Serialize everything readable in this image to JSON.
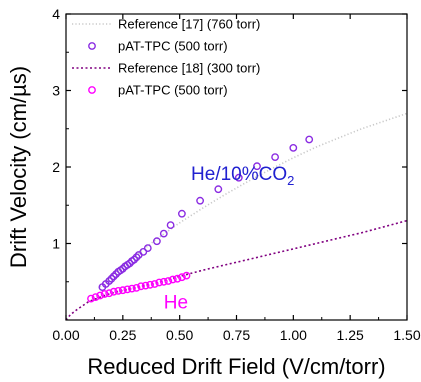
{
  "chart_data": {
    "type": "scatter",
    "xlabel": "Reduced Drift Field (V/cm/torr)",
    "ylabel": "Drift Velocity (cm/µs)",
    "xlim": [
      0,
      1.5
    ],
    "ylim": [
      0,
      4
    ],
    "x_ticks": [
      "0.00",
      "0.25",
      "0.50",
      "0.75",
      "1.00",
      "1.25",
      "1.50"
    ],
    "y_ticks": [
      "1",
      "2",
      "3",
      "4"
    ],
    "grid": false,
    "legend_position": "top-left",
    "series": [
      {
        "name": "Reference [17] (760 torr)",
        "kind": "line",
        "style": "dotted",
        "color": "#c8c8c8",
        "x": [
          0.15,
          0.2,
          0.25,
          0.3,
          0.4,
          0.5,
          0.6,
          0.7,
          0.8,
          0.9,
          1.0,
          1.1,
          1.2,
          1.3,
          1.4,
          1.5
        ],
        "y": [
          0.43,
          0.57,
          0.7,
          0.83,
          1.06,
          1.27,
          1.46,
          1.64,
          1.81,
          1.97,
          2.12,
          2.26,
          2.38,
          2.5,
          2.6,
          2.7
        ]
      },
      {
        "name": "pAT-TPC (500 torr)",
        "kind": "marker",
        "color": "#8a2be2",
        "x": [
          0.16,
          0.175,
          0.19,
          0.2,
          0.21,
          0.22,
          0.23,
          0.24,
          0.25,
          0.26,
          0.27,
          0.28,
          0.29,
          0.3,
          0.31,
          0.32,
          0.34,
          0.36,
          0.4,
          0.43,
          0.46,
          0.51,
          0.59,
          0.67,
          0.76,
          0.84,
          0.92,
          1.0,
          1.07
        ],
        "y": [
          0.43,
          0.47,
          0.51,
          0.54,
          0.57,
          0.6,
          0.63,
          0.65,
          0.67,
          0.7,
          0.72,
          0.74,
          0.77,
          0.79,
          0.82,
          0.85,
          0.89,
          0.94,
          1.03,
          1.13,
          1.24,
          1.39,
          1.56,
          1.71,
          1.86,
          2.01,
          2.13,
          2.25,
          2.36
        ]
      },
      {
        "name": "Reference [18] (300 torr)",
        "kind": "line",
        "style": "dotted",
        "color": "#800080",
        "x": [
          0.0,
          0.02,
          0.05,
          0.1,
          0.15,
          0.2,
          0.3,
          0.4,
          0.5,
          0.6,
          0.7,
          0.8,
          0.9,
          1.0,
          1.1,
          1.2,
          1.3,
          1.4,
          1.5
        ],
        "y": [
          0.0,
          0.07,
          0.14,
          0.24,
          0.3,
          0.35,
          0.42,
          0.49,
          0.57,
          0.65,
          0.72,
          0.79,
          0.86,
          0.93,
          1.0,
          1.07,
          1.14,
          1.22,
          1.3
        ]
      },
      {
        "name": "pAT-TPC (500 torr)",
        "kind": "marker",
        "color": "#ff00ff",
        "x": [
          0.11,
          0.13,
          0.15,
          0.17,
          0.19,
          0.21,
          0.23,
          0.25,
          0.27,
          0.29,
          0.31,
          0.33,
          0.35,
          0.37,
          0.39,
          0.41,
          0.43,
          0.45,
          0.47,
          0.49,
          0.51,
          0.53
        ],
        "y": [
          0.28,
          0.3,
          0.32,
          0.34,
          0.35,
          0.37,
          0.38,
          0.39,
          0.4,
          0.41,
          0.42,
          0.44,
          0.45,
          0.46,
          0.47,
          0.49,
          0.5,
          0.51,
          0.53,
          0.54,
          0.56,
          0.58
        ]
      }
    ],
    "annotations": [
      {
        "text_main": "He/10%CO",
        "text_sub": "2",
        "color": "#2020d0",
        "x": 0.55,
        "y": 1.83
      },
      {
        "text_main": "He",
        "text_sub": "",
        "color": "#ff00ff",
        "x": 0.43,
        "y": 0.15
      }
    ]
  }
}
